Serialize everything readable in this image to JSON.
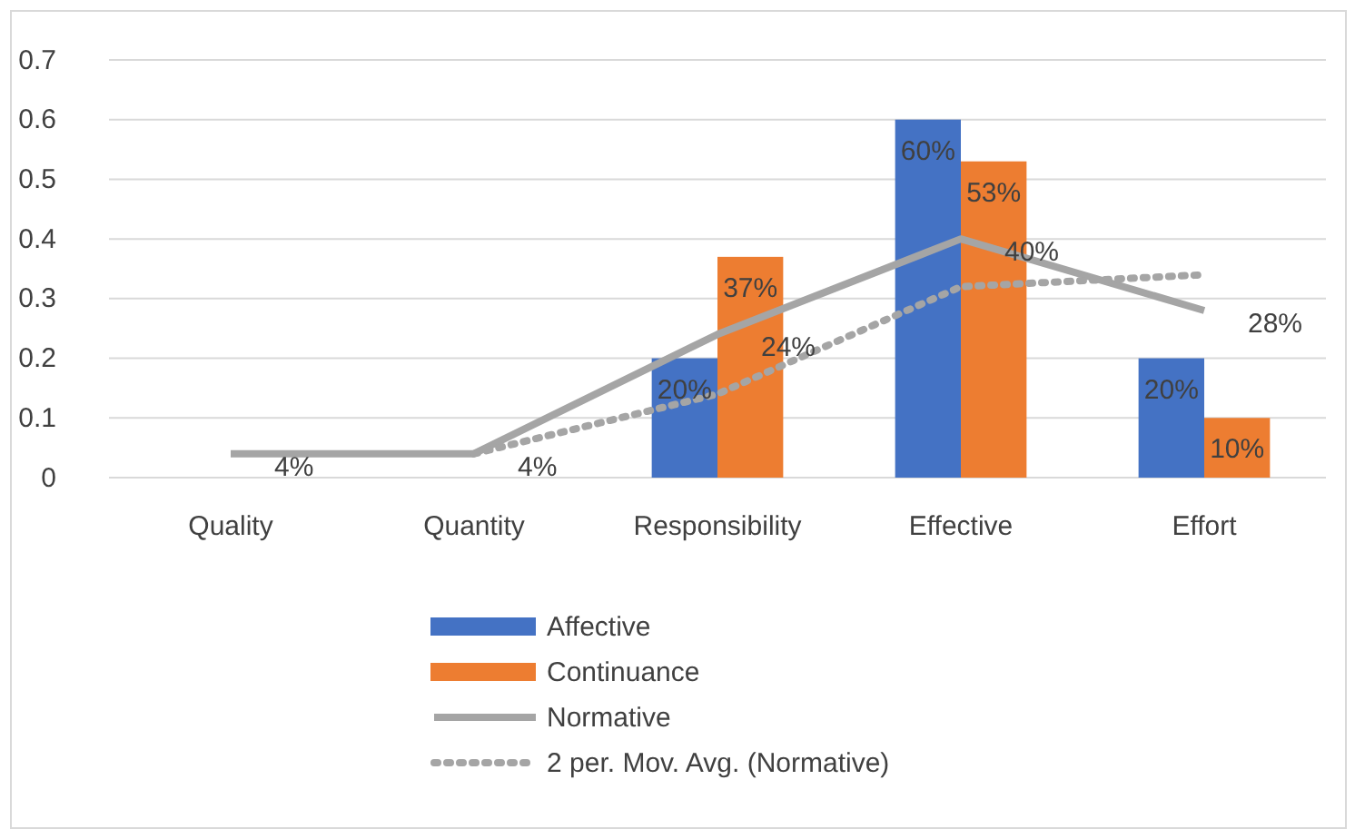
{
  "chart_data": {
    "type": "bar",
    "categories": [
      "Quality",
      "Quantity",
      "Responsibility",
      "Effective",
      "Effort"
    ],
    "series": [
      {
        "name": "Affective",
        "color": "#4472c4",
        "values": [
          null,
          null,
          0.2,
          0.6,
          0.2
        ],
        "value_labels": [
          null,
          null,
          "20%",
          "60%",
          "20%"
        ]
      },
      {
        "name": "Continuance",
        "color": "#ed7d31",
        "values": [
          null,
          null,
          0.37,
          0.53,
          0.1
        ],
        "value_labels": [
          null,
          null,
          "37%",
          "53%",
          "10%"
        ]
      },
      {
        "name": "Normative",
        "type": "line",
        "color": "#a5a5a5",
        "values": [
          0.04,
          0.04,
          0.24,
          0.4,
          0.28
        ],
        "value_labels": [
          "4%",
          "4%",
          "24%",
          "40%",
          "28%"
        ]
      },
      {
        "name": "2 per. Mov. Avg. (Normative)",
        "type": "line",
        "line_style": "dotted",
        "color": "#a5a5a5",
        "values": [
          null,
          0.04,
          0.14,
          0.32,
          0.34
        ]
      }
    ],
    "ylim": [
      0,
      0.7
    ],
    "yticks": [
      {
        "value": 0,
        "label": "0"
      },
      0.1,
      0.2,
      0.3,
      0.4,
      0.5,
      0.6,
      0.7
    ],
    "grid": "y",
    "legend": "bottom"
  }
}
